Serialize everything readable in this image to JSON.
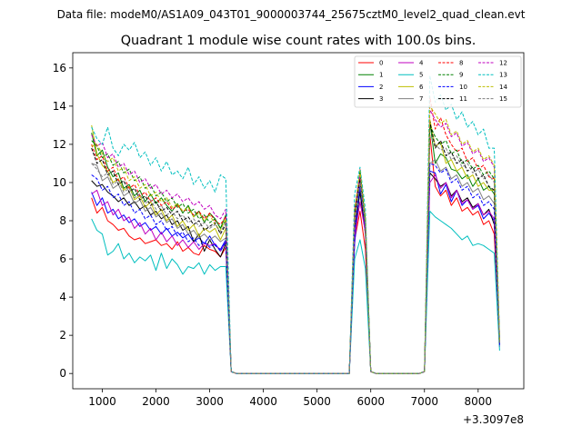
{
  "header": {
    "data_file": "Data file: modeM0/AS1A09_043T01_9000003744_25675cztM0_level2_quad_clean.evt"
  },
  "chart_data": {
    "type": "line",
    "title": "Quadrant 1 module wise count rates with 100.0s bins.",
    "xlabel": "",
    "ylabel": "",
    "x_offset_label": "+3.3097e8",
    "xlim": [
      450,
      8850
    ],
    "ylim": [
      -0.8,
      16.8
    ],
    "xticks": [
      1000,
      2000,
      3000,
      4000,
      5000,
      6000,
      7000,
      8000
    ],
    "yticks": [
      0,
      2,
      4,
      6,
      8,
      10,
      12,
      14,
      16
    ],
    "x": [
      800,
      900,
      1000,
      1100,
      1200,
      1300,
      1400,
      1500,
      1600,
      1700,
      1800,
      1900,
      2000,
      2100,
      2200,
      2300,
      2400,
      2500,
      2600,
      2700,
      2800,
      2900,
      3000,
      3100,
      3200,
      3300,
      3400,
      3500,
      3600,
      5600,
      5700,
      5800,
      5900,
      6000,
      6100,
      6900,
      7000,
      7100,
      7200,
      7300,
      7400,
      7500,
      7600,
      7700,
      7800,
      7900,
      8000,
      8100,
      8200,
      8300,
      8400
    ],
    "legend": {
      "location": "top-right",
      "columns": 4
    },
    "series": [
      {
        "name": "0",
        "color": "#ff0000",
        "style": "solid",
        "values": [
          9.2,
          8.4,
          8.7,
          8.0,
          7.8,
          7.5,
          7.6,
          7.2,
          7.0,
          7.1,
          6.8,
          6.9,
          7.0,
          6.7,
          6.8,
          6.5,
          6.9,
          6.4,
          6.6,
          6.3,
          6.2,
          6.7,
          6.5,
          6.4,
          6.1,
          6.6,
          0.1,
          0,
          0,
          0,
          7.0,
          8.5,
          6.5,
          0.1,
          0,
          0,
          0.1,
          12.5,
          9.8,
          9.3,
          9.6,
          8.8,
          9.2,
          8.5,
          8.7,
          8.3,
          8.5,
          7.8,
          8.0,
          7.3,
          1.6
        ]
      },
      {
        "name": "1",
        "color": "#008000",
        "style": "solid",
        "values": [
          12.6,
          11.4,
          11.7,
          10.8,
          10.3,
          10.5,
          9.7,
          9.9,
          9.3,
          9.6,
          9.0,
          9.4,
          8.9,
          9.2,
          8.8,
          8.5,
          8.9,
          8.4,
          8.8,
          8.2,
          8.5,
          7.9,
          8.4,
          8.1,
          7.6,
          8.3,
          0.1,
          0,
          0,
          0,
          8.2,
          10.5,
          8.0,
          0.1,
          0,
          0,
          0.1,
          13.2,
          11.0,
          11.5,
          11.3,
          10.7,
          10.6,
          10.2,
          10.4,
          9.8,
          10.2,
          9.6,
          9.8,
          9.4,
          1.7
        ]
      },
      {
        "name": "2",
        "color": "#0000ff",
        "style": "solid",
        "values": [
          9.5,
          8.8,
          9.2,
          8.4,
          8.6,
          8.1,
          8.3,
          7.9,
          8.1,
          7.7,
          7.9,
          7.5,
          7.7,
          7.3,
          7.6,
          7.2,
          7.4,
          7.1,
          7.3,
          6.9,
          7.1,
          6.8,
          7.2,
          6.7,
          6.5,
          7.0,
          0.1,
          0,
          0,
          0,
          6.8,
          9.8,
          7.5,
          0.1,
          0,
          0,
          0.1,
          10.6,
          10.5,
          9.4,
          9.9,
          9.0,
          9.6,
          8.8,
          9.1,
          8.6,
          8.8,
          8.1,
          8.4,
          8.0,
          1.5
        ]
      },
      {
        "name": "3",
        "color": "#000000",
        "style": "solid",
        "values": [
          10.1,
          9.8,
          9.9,
          9.5,
          9.3,
          9.0,
          9.2,
          8.8,
          9.0,
          8.6,
          8.8,
          8.3,
          8.5,
          8.1,
          8.3,
          7.8,
          8.0,
          7.5,
          7.7,
          6.9,
          7.3,
          6.4,
          7.0,
          6.5,
          6.1,
          6.8,
          0.1,
          0,
          0,
          0,
          7.5,
          9.5,
          7.3,
          0.1,
          0,
          0,
          0.1,
          10.5,
          10.2,
          9.8,
          10.0,
          9.3,
          9.6,
          9.0,
          9.2,
          8.7,
          8.9,
          8.3,
          8.6,
          7.8,
          1.5
        ]
      },
      {
        "name": "4",
        "color": "#bf00bf",
        "style": "solid",
        "values": [
          9.4,
          9.6,
          8.8,
          9.0,
          8.3,
          8.6,
          8.0,
          8.2,
          7.6,
          7.9,
          7.3,
          7.6,
          7.0,
          7.4,
          6.9,
          7.2,
          6.7,
          7.0,
          6.6,
          6.9,
          6.5,
          6.8,
          6.7,
          6.8,
          6.4,
          6.9,
          0.1,
          0,
          0,
          0,
          7.2,
          9.0,
          7.4,
          0.1,
          0,
          0,
          0.1,
          10.0,
          10.4,
          9.7,
          10.0,
          9.2,
          9.6,
          8.9,
          9.1,
          8.6,
          8.9,
          8.3,
          8.5,
          8.1,
          1.4
        ]
      },
      {
        "name": "5",
        "color": "#00bfbf",
        "style": "solid",
        "values": [
          8.1,
          7.5,
          7.3,
          6.2,
          6.4,
          6.8,
          6.0,
          6.3,
          5.8,
          6.1,
          5.9,
          6.2,
          5.4,
          6.3,
          5.5,
          6.0,
          5.7,
          5.2,
          5.6,
          5.5,
          5.8,
          5.2,
          5.7,
          5.4,
          5.6,
          5.6,
          0.1,
          0,
          0,
          0,
          6.0,
          7.0,
          5.5,
          0.1,
          0,
          0,
          0.1,
          8.5,
          8.2,
          8.0,
          7.8,
          7.6,
          7.3,
          7.0,
          7.2,
          6.7,
          6.8,
          6.7,
          6.5,
          6.3,
          1.2
        ]
      },
      {
        "name": "6",
        "color": "#bfbf00",
        "style": "solid",
        "values": [
          13.0,
          11.5,
          10.9,
          10.6,
          10.0,
          10.2,
          9.6,
          9.8,
          9.1,
          9.3,
          8.7,
          9.0,
          8.3,
          8.6,
          8.0,
          8.3,
          7.7,
          8.0,
          7.5,
          7.8,
          7.2,
          7.6,
          7.4,
          7.6,
          7.0,
          7.6,
          0.1,
          0,
          0,
          0,
          8.3,
          10.0,
          7.7,
          0.1,
          0,
          0,
          0.1,
          13.3,
          11.9,
          12.1,
          11.0,
          11.2,
          10.6,
          10.8,
          10.2,
          10.4,
          9.8,
          10.0,
          9.6,
          9.6,
          1.6
        ]
      },
      {
        "name": "7",
        "color": "#808080",
        "style": "solid",
        "values": [
          11.0,
          10.9,
          10.1,
          10.3,
          9.7,
          9.9,
          9.3,
          9.5,
          8.9,
          9.1,
          8.5,
          8.7,
          8.2,
          8.4,
          7.9,
          8.1,
          7.6,
          7.8,
          7.3,
          7.5,
          7.1,
          7.3,
          7.0,
          7.2,
          6.9,
          7.1,
          0.1,
          0,
          0,
          0,
          7.8,
          10.3,
          7.6,
          0.1,
          0,
          0,
          0.1,
          11.0,
          11.2,
          10.6,
          10.8,
          10.2,
          10.4,
          9.8,
          10.0,
          9.5,
          9.7,
          9.1,
          9.3,
          8.9,
          1.5
        ]
      },
      {
        "name": "8",
        "color": "#ff0000",
        "style": "dashed",
        "values": [
          12.0,
          11.2,
          11.4,
          10.6,
          10.8,
          10.1,
          10.3,
          9.7,
          9.9,
          9.3,
          9.5,
          9.0,
          9.2,
          8.8,
          9.0,
          8.6,
          8.8,
          8.5,
          8.6,
          8.3,
          8.5,
          8.1,
          8.4,
          8.0,
          7.8,
          8.2,
          0.1,
          0,
          0,
          0,
          8.0,
          10.7,
          7.9,
          0.1,
          0,
          0,
          0.1,
          14.5,
          12.8,
          13.4,
          12.5,
          12.0,
          11.6,
          11.8,
          11.1,
          11.3,
          10.7,
          10.9,
          10.3,
          10.2,
          1.8
        ]
      },
      {
        "name": "9",
        "color": "#008000",
        "style": "dashed",
        "values": [
          12.2,
          11.9,
          11.3,
          11.5,
          10.9,
          11.1,
          10.5,
          10.7,
          10.1,
          10.3,
          9.7,
          9.9,
          9.3,
          9.5,
          9.0,
          9.2,
          8.7,
          8.9,
          8.4,
          8.6,
          8.1,
          8.3,
          7.9,
          8.1,
          7.6,
          8.0,
          0.1,
          0,
          0,
          0,
          8.5,
          10.6,
          8.0,
          0.1,
          0,
          0,
          0.1,
          13.0,
          12.4,
          12.0,
          12.2,
          11.5,
          11.7,
          11.0,
          11.2,
          10.7,
          10.9,
          10.4,
          10.6,
          10.2,
          1.7
        ]
      },
      {
        "name": "10",
        "color": "#0000ff",
        "style": "dashed",
        "values": [
          10.4,
          10.2,
          9.6,
          9.8,
          9.2,
          9.4,
          8.8,
          9.0,
          8.4,
          8.6,
          8.1,
          8.3,
          7.8,
          8.0,
          7.5,
          7.7,
          7.2,
          7.4,
          6.9,
          7.1,
          6.7,
          6.9,
          6.6,
          6.8,
          6.4,
          6.9,
          0.1,
          0,
          0,
          0,
          7.5,
          9.8,
          7.6,
          0.1,
          0,
          0,
          0.1,
          11.0,
          10.9,
          10.5,
          10.7,
          10.0,
          10.2,
          9.6,
          9.8,
          9.2,
          9.4,
          8.8,
          9.0,
          8.6,
          1.5
        ]
      },
      {
        "name": "11",
        "color": "#000000",
        "style": "dashed",
        "values": [
          11.8,
          11.0,
          11.2,
          10.4,
          10.6,
          9.9,
          10.1,
          9.5,
          9.7,
          9.1,
          9.3,
          8.8,
          9.0,
          8.5,
          8.7,
          8.3,
          8.5,
          8.0,
          8.2,
          7.8,
          8.0,
          7.5,
          7.7,
          7.9,
          7.3,
          7.8,
          0.1,
          0,
          0,
          0,
          8.2,
          10.2,
          8.0,
          0.1,
          0,
          0,
          0.1,
          13.2,
          11.8,
          12.2,
          11.4,
          11.6,
          11.0,
          11.2,
          10.6,
          10.8,
          10.2,
          10.4,
          9.8,
          9.6,
          1.6
        ]
      },
      {
        "name": "12",
        "color": "#bf00bf",
        "style": "dashed",
        "values": [
          12.5,
          11.9,
          12.1,
          11.3,
          11.5,
          10.8,
          11.0,
          10.4,
          10.6,
          10.0,
          10.2,
          9.7,
          9.9,
          9.4,
          9.6,
          9.2,
          9.4,
          9.0,
          9.2,
          8.8,
          9.0,
          8.6,
          8.8,
          8.3,
          8.1,
          8.6,
          0.1,
          0,
          0,
          0,
          8.6,
          10.4,
          8.2,
          0.1,
          0,
          0,
          0.1,
          13.8,
          13.3,
          12.9,
          13.1,
          12.4,
          12.6,
          11.9,
          12.1,
          11.5,
          11.7,
          11.1,
          11.3,
          10.8,
          1.8
        ]
      },
      {
        "name": "13",
        "color": "#00bfbf",
        "style": "dashed",
        "values": [
          12.9,
          12.3,
          12.0,
          12.9,
          11.8,
          11.4,
          12.0,
          11.7,
          12.1,
          11.3,
          11.6,
          10.9,
          11.3,
          10.6,
          11.1,
          10.4,
          10.6,
          10.2,
          10.8,
          9.9,
          10.3,
          9.7,
          10.1,
          9.5,
          10.4,
          10.2,
          0.1,
          0,
          0,
          0,
          9.4,
          10.8,
          8.6,
          0.1,
          0,
          0,
          0.1,
          15.6,
          14.2,
          14.6,
          13.8,
          14.1,
          13.3,
          13.7,
          12.9,
          13.2,
          12.5,
          12.8,
          11.8,
          11.8,
          1.8
        ]
      },
      {
        "name": "14",
        "color": "#bfbf00",
        "style": "dashed",
        "values": [
          11.9,
          12.0,
          11.5,
          11.1,
          11.3,
          10.6,
          10.8,
          10.1,
          10.3,
          9.7,
          9.9,
          9.3,
          9.5,
          9.0,
          9.2,
          8.7,
          8.9,
          8.5,
          8.7,
          8.2,
          8.4,
          8.0,
          8.3,
          7.8,
          7.5,
          8.1,
          0.1,
          0,
          0,
          0,
          8.6,
          10.6,
          8.1,
          0.1,
          0,
          0,
          0.1,
          14.0,
          13.6,
          13.1,
          13.3,
          12.5,
          12.7,
          12.0,
          12.2,
          11.6,
          11.8,
          11.2,
          11.4,
          10.9,
          1.7
        ]
      },
      {
        "name": "15",
        "color": "#808080",
        "style": "dashed",
        "values": [
          11.0,
          10.7,
          10.3,
          10.5,
          9.9,
          10.1,
          9.5,
          9.7,
          9.2,
          9.4,
          8.9,
          9.1,
          8.6,
          8.8,
          8.3,
          8.5,
          8.1,
          8.3,
          7.9,
          8.1,
          7.7,
          7.9,
          7.6,
          7.8,
          7.4,
          7.9,
          0.1,
          0,
          0,
          0,
          8.0,
          10.0,
          7.8,
          0.1,
          0,
          0,
          0.1,
          12.4,
          12.0,
          11.7,
          11.8,
          11.2,
          11.4,
          10.8,
          11.0,
          10.5,
          10.7,
          10.2,
          10.4,
          10.0,
          1.6
        ]
      }
    ]
  }
}
